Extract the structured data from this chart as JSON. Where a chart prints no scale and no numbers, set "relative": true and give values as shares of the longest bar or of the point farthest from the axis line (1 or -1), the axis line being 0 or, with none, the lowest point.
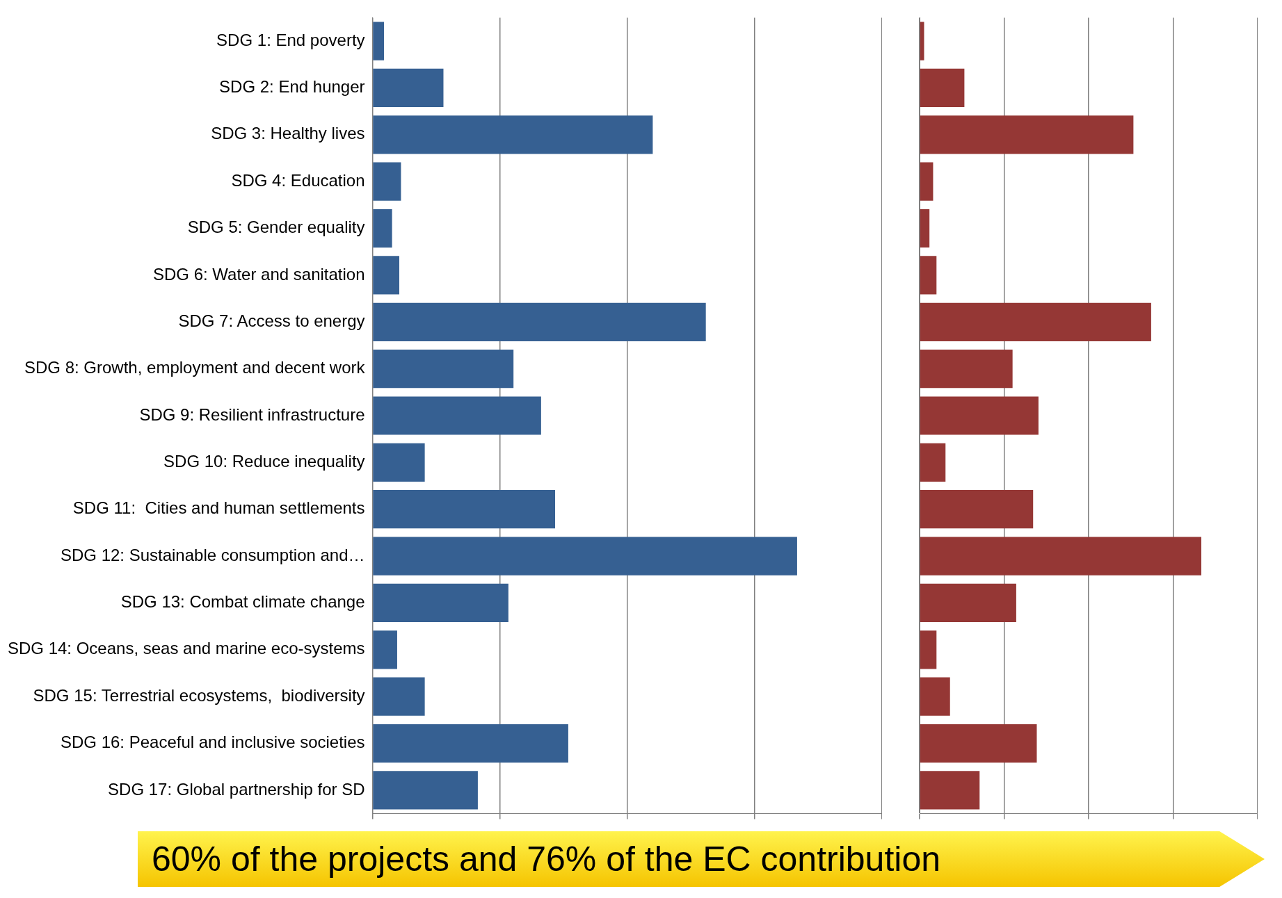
{
  "chart_data": [
    {
      "type": "bar",
      "orientation": "horizontal",
      "relative": true,
      "grid": "x",
      "color": "#366092",
      "categories": [
        "SDG 1: End poverty",
        "SDG 2: End hunger",
        "SDG 3: Healthy lives",
        "SDG 4: Education",
        "SDG 5: Gender equality",
        "SDG 6: Water and sanitation",
        "SDG 7: Access to energy",
        "SDG 8: Growth, employment and decent work",
        "SDG 9: Resilient infrastructure",
        "SDG 10: Reduce inequality",
        "SDG 11:  Cities and human settlements",
        "SDG 12: Sustainable consumption and…",
        "SDG 13: Combat climate change",
        "SDG 14: Oceans, seas and marine eco-systems",
        "SDG 15: Terrestrial ecosystems,  biodiversity",
        "SDG 16: Peaceful and inclusive societies",
        "SDG 17: Global partnership for SD"
      ],
      "values": [
        0.027,
        0.167,
        0.66,
        0.067,
        0.046,
        0.063,
        0.785,
        0.332,
        0.397,
        0.123,
        0.43,
        1,
        0.32,
        0.058,
        0.123,
        0.461,
        0.248
      ],
      "annotations": [
        "60% of the projects and 76% of the EC contribution"
      ]
    },
    {
      "type": "bar",
      "orientation": "horizontal",
      "relative": true,
      "grid": "x",
      "color": "#953735",
      "categories": [
        null,
        null,
        null,
        null,
        null,
        null,
        null,
        null,
        null,
        null,
        null,
        null,
        null,
        null,
        null,
        null,
        null
      ],
      "values": [
        0.016,
        0.159,
        0.759,
        0.048,
        0.035,
        0.06,
        0.822,
        0.33,
        0.422,
        0.092,
        0.403,
        1,
        0.343,
        0.06,
        0.108,
        0.416,
        0.213
      ]
    }
  ]
}
